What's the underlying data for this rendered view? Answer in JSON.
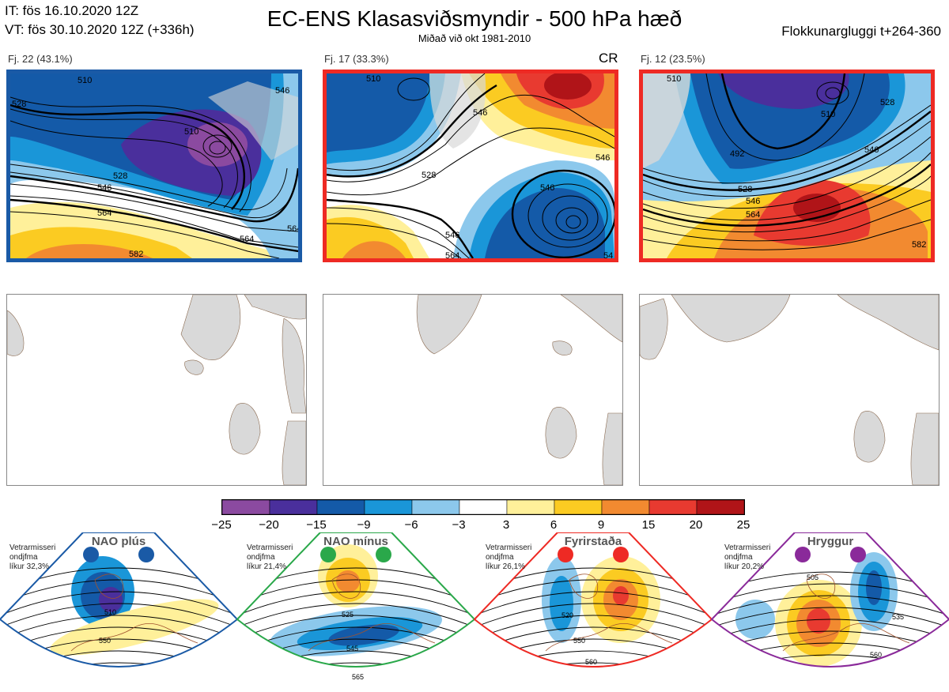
{
  "header": {
    "init_time": "IT: fös 16.10.2020 12Z",
    "valid_time": "VT: fös 30.10.2020 12Z  (+336h)",
    "title": "EC-ENS Klasasviðsmyndir - 500 hPa hæð",
    "subtitle": "Miðað við okt 1981-2010",
    "window": "Flokkunargluggi t+264-360"
  },
  "clusters": [
    {
      "label": "Fj. 22 (43.1%)",
      "border_color": "#1a5aa6",
      "regime_tag": "",
      "contours": [
        "510",
        "528",
        "528",
        "546",
        "546",
        "564",
        "564",
        "564",
        "582",
        "510"
      ]
    },
    {
      "label": "Fj. 17 (33.3%)",
      "border_color": "#ee2a24",
      "regime_tag": "CR",
      "contours": [
        "510",
        "528",
        "546",
        "546",
        "546",
        "564",
        "546",
        "54"
      ]
    },
    {
      "label": "Fj. 12 (23.5%)",
      "border_color": "#ee2a24",
      "regime_tag": "",
      "contours": [
        "510",
        "528",
        "492",
        "510",
        "528",
        "546",
        "564",
        "546",
        "582"
      ]
    }
  ],
  "colorbar": {
    "labels": [
      "-25",
      "-20",
      "-15",
      "-9",
      "-6",
      "-3",
      "3",
      "6",
      "9",
      "15",
      "20",
      "25"
    ],
    "colors": [
      "#8b4aa0",
      "#4a2f9c",
      "#145aa8",
      "#1a96d8",
      "#8cc8ec",
      "#ffffff",
      "#fff09a",
      "#fbcb22",
      "#f28a30",
      "#e83a30",
      "#b01418"
    ]
  },
  "regimes": [
    {
      "name": "NAO plús",
      "note": [
        "Vetrarmisseri",
        "ondjfma",
        "líkur 32,3%"
      ],
      "color": "#1a5aa6",
      "labels": [
        "510",
        "550"
      ]
    },
    {
      "name": "NAO mínus",
      "note": [
        "Vetrarmisseri",
        "ondjfma",
        "líkur 21,4%"
      ],
      "color": "#2aa84a",
      "labels": [
        "525",
        "545",
        "565"
      ]
    },
    {
      "name": "Fyrirstaða",
      "note": [
        "Vetrarmisseri",
        "ondjfma",
        "líkur 26,1%"
      ],
      "color": "#ee2a24",
      "labels": [
        "520",
        "550",
        "560"
      ]
    },
    {
      "name": "Hryggur",
      "note": [
        "Vetrarmisseri",
        "ondjfma",
        "líkur 20,2%"
      ],
      "color": "#8a2a9a",
      "labels": [
        "505",
        "535",
        "560"
      ]
    }
  ]
}
